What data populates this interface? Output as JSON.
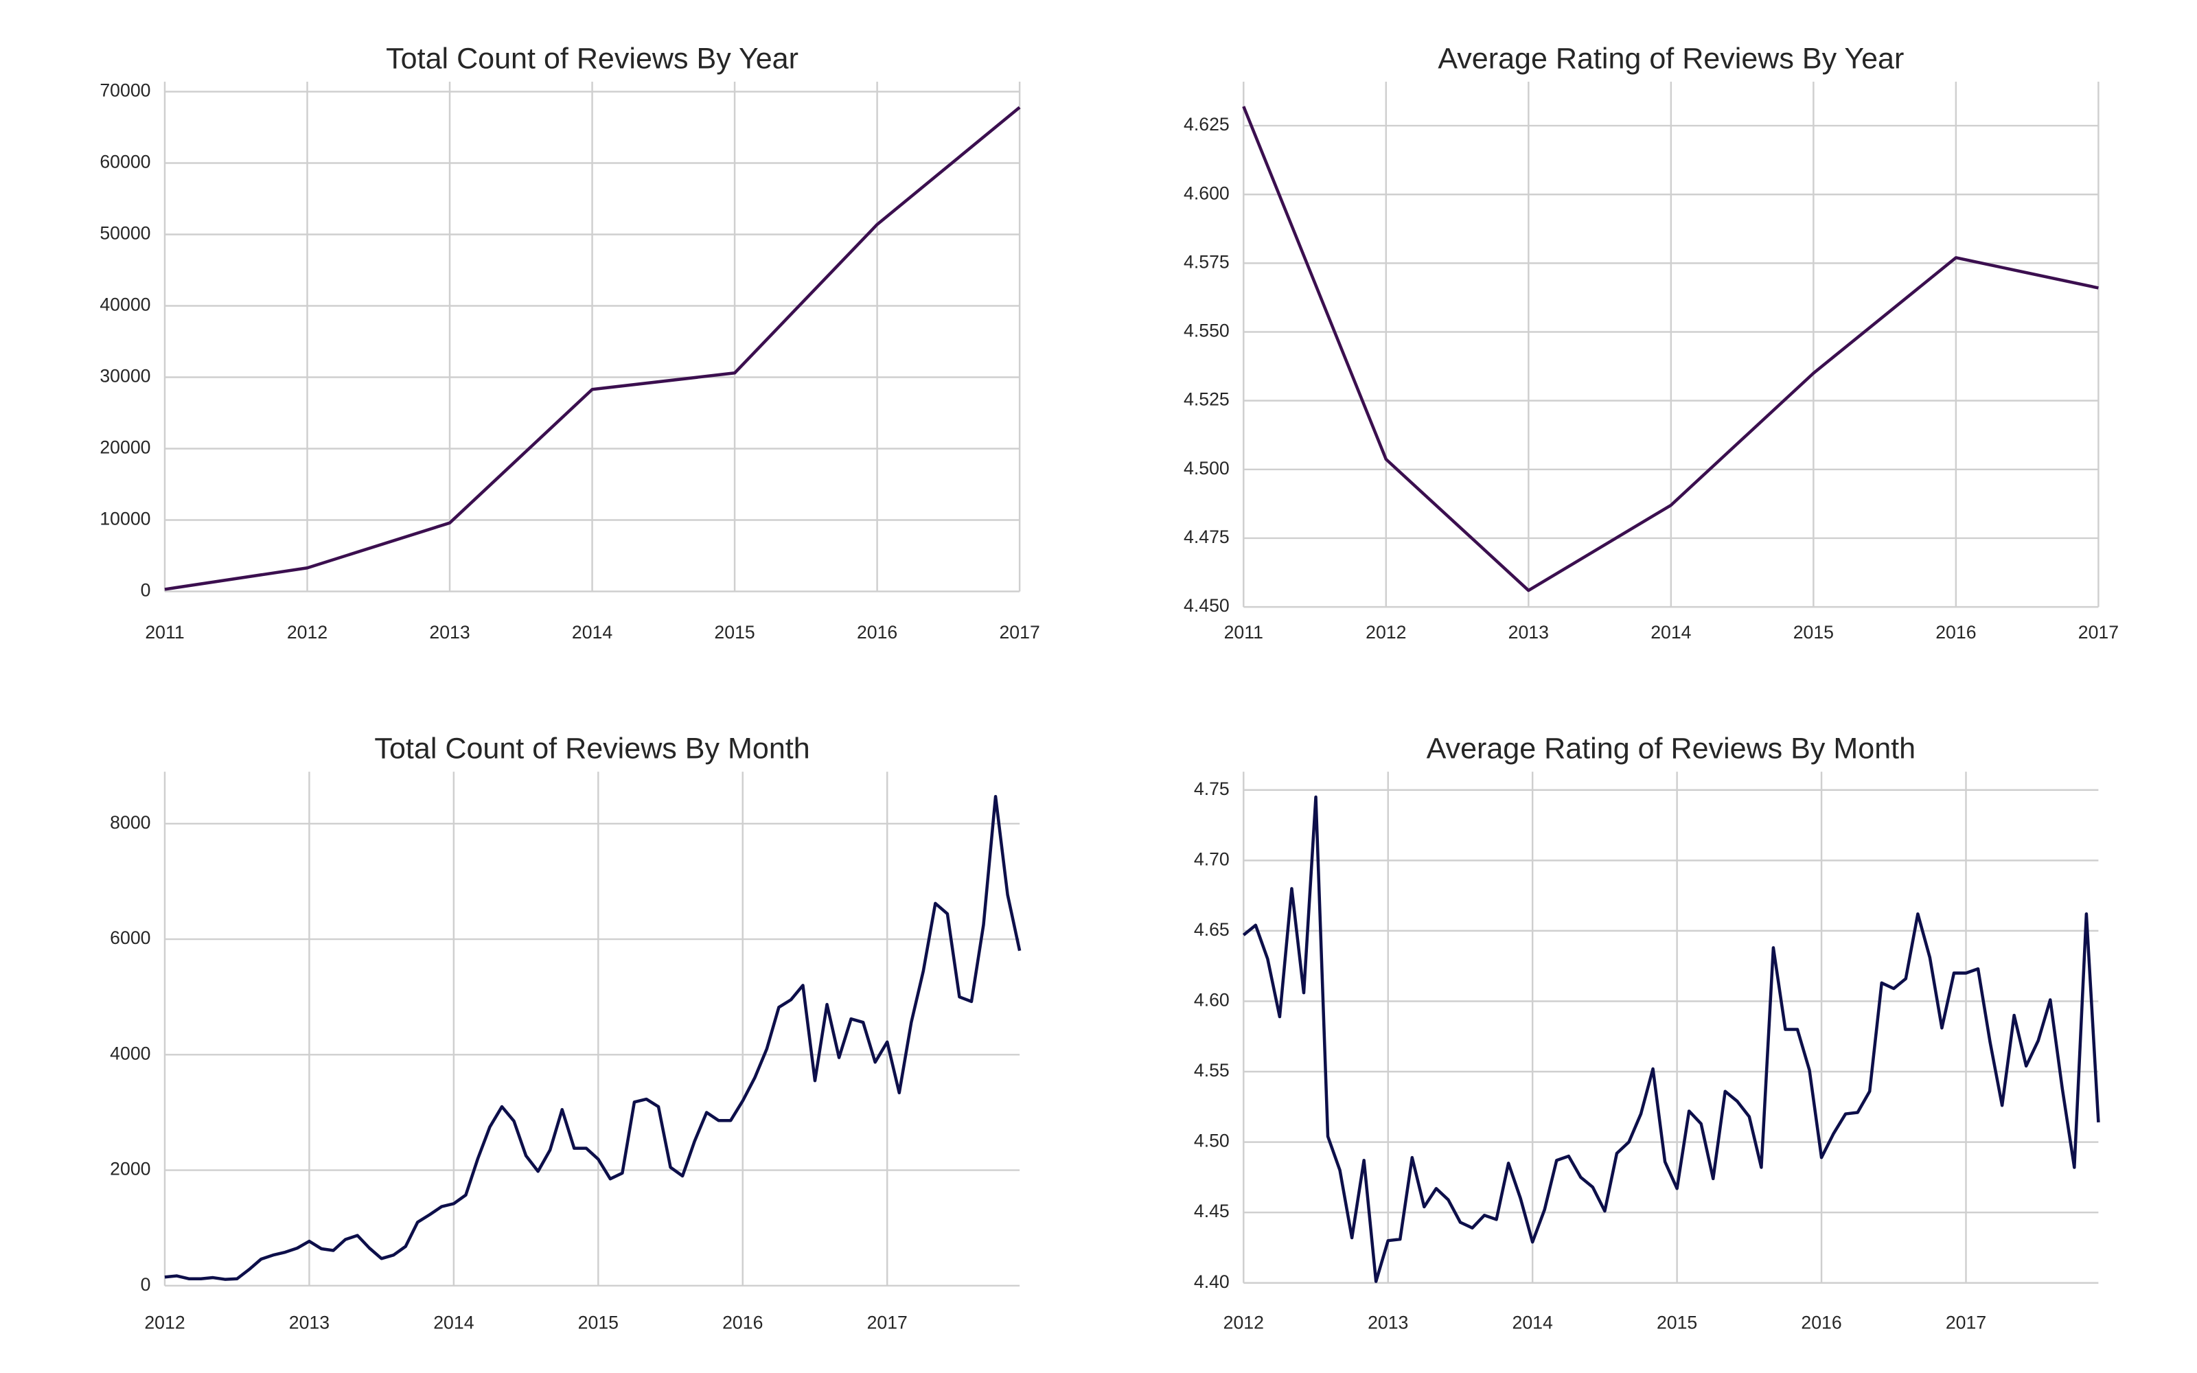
{
  "chart_data": [
    {
      "type": "line",
      "title": "Total Count of Reviews By Year",
      "x": [
        2011,
        2012,
        2013,
        2014,
        2015,
        2016,
        2017
      ],
      "values": [
        300,
        3300,
        9600,
        28300,
        30600,
        51400,
        67800
      ],
      "color": "#3b0f4f",
      "xlim": [
        2011,
        2017
      ],
      "xticks": [
        2011,
        2012,
        2013,
        2014,
        2015,
        2016,
        2017
      ],
      "ylim": [
        0,
        71400
      ],
      "yticks": [
        0,
        10000,
        20000,
        30000,
        40000,
        50000,
        60000,
        70000
      ],
      "grid": true
    },
    {
      "type": "line",
      "title": "Average Rating of Reviews By Year",
      "x": [
        2011,
        2012,
        2013,
        2014,
        2015,
        2016,
        2017
      ],
      "values": [
        4.632,
        4.5037,
        4.456,
        4.487,
        4.535,
        4.577,
        4.566
      ],
      "color": "#3b0f4f",
      "xlim": [
        2011,
        2017
      ],
      "xticks": [
        2011,
        2012,
        2013,
        2014,
        2015,
        2016,
        2017
      ],
      "ylim": [
        4.45,
        4.641
      ],
      "yticks": [
        {
          "value": 4.45,
          "label": "4.450"
        },
        {
          "value": 4.475,
          "label": "4.475"
        },
        {
          "value": 4.5,
          "label": "4.500"
        },
        {
          "value": 4.525,
          "label": "4.525"
        },
        {
          "value": 4.55,
          "label": "4.550"
        },
        {
          "value": 4.575,
          "label": "4.575"
        },
        {
          "value": 4.6,
          "label": "4.600"
        },
        {
          "value": 4.625,
          "label": "4.625"
        }
      ],
      "grid": true
    },
    {
      "type": "line",
      "title": "Total Count of Reviews By Month",
      "x": [
        "2012-01",
        "2012-02",
        "2012-03",
        "2012-04",
        "2012-05",
        "2012-06",
        "2012-07",
        "2012-08",
        "2012-09",
        "2012-10",
        "2012-11",
        "2012-12",
        "2013-01",
        "2013-02",
        "2013-03",
        "2013-04",
        "2013-05",
        "2013-06",
        "2013-07",
        "2013-08",
        "2013-09",
        "2013-10",
        "2013-11",
        "2013-12",
        "2014-01",
        "2014-02",
        "2014-03",
        "2014-04",
        "2014-05",
        "2014-06",
        "2014-07",
        "2014-08",
        "2014-09",
        "2014-10",
        "2014-11",
        "2014-12",
        "2015-01",
        "2015-02",
        "2015-03",
        "2015-04",
        "2015-05",
        "2015-06",
        "2015-07",
        "2015-08",
        "2015-09",
        "2015-10",
        "2015-11",
        "2015-12",
        "2016-01",
        "2016-02",
        "2016-03",
        "2016-04",
        "2016-05",
        "2016-06",
        "2016-07",
        "2016-08",
        "2016-09",
        "2016-10",
        "2016-11",
        "2016-12",
        "2017-01",
        "2017-02",
        "2017-03",
        "2017-04",
        "2017-05",
        "2017-06",
        "2017-07",
        "2017-08",
        "2017-09",
        "2017-10",
        "2017-11",
        "2017-12"
      ],
      "values": [
        150,
        170,
        120,
        120,
        140,
        110,
        120,
        280,
        460,
        530,
        580,
        650,
        770,
        640,
        610,
        800,
        870,
        650,
        470,
        530,
        680,
        1100,
        1230,
        1370,
        1420,
        1570,
        2200,
        2750,
        3100,
        2850,
        2250,
        1980,
        2350,
        3050,
        2380,
        2380,
        2190,
        1850,
        1950,
        3180,
        3230,
        3100,
        2050,
        1900,
        2500,
        3000,
        2860,
        2860,
        3200,
        3600,
        4100,
        4820,
        4950,
        5200,
        3550,
        4870,
        3950,
        4620,
        4560,
        3870,
        4220,
        3340,
        4560,
        5450,
        6620,
        6440,
        5000,
        4920,
        6250,
        8470,
        6770,
        5800
      ],
      "color": "#0d0f4a",
      "xlim": [
        "2012-01",
        "2017-12"
      ],
      "xticks": [
        {
          "value": "2012-01",
          "label": "2012"
        },
        {
          "value": "2013-01",
          "label": "2013"
        },
        {
          "value": "2014-01",
          "label": "2014"
        },
        {
          "value": "2015-01",
          "label": "2015"
        },
        {
          "value": "2016-01",
          "label": "2016"
        },
        {
          "value": "2017-01",
          "label": "2017"
        }
      ],
      "ylim": [
        0,
        8900
      ],
      "yticks": [
        0,
        2000,
        4000,
        6000,
        8000
      ],
      "grid": true
    },
    {
      "type": "line",
      "title": "Average Rating of Reviews By Month",
      "x": [
        "2012-01",
        "2012-02",
        "2012-03",
        "2012-04",
        "2012-05",
        "2012-06",
        "2012-07",
        "2012-08",
        "2012-09",
        "2012-10",
        "2012-11",
        "2012-12",
        "2013-01",
        "2013-02",
        "2013-03",
        "2013-04",
        "2013-05",
        "2013-06",
        "2013-07",
        "2013-08",
        "2013-09",
        "2013-10",
        "2013-11",
        "2013-12",
        "2014-01",
        "2014-02",
        "2014-03",
        "2014-04",
        "2014-05",
        "2014-06",
        "2014-07",
        "2014-08",
        "2014-09",
        "2014-10",
        "2014-11",
        "2014-12",
        "2015-01",
        "2015-02",
        "2015-03",
        "2015-04",
        "2015-05",
        "2015-06",
        "2015-07",
        "2015-08",
        "2015-09",
        "2015-10",
        "2015-11",
        "2015-12",
        "2016-01",
        "2016-02",
        "2016-03",
        "2016-04",
        "2016-05",
        "2016-06",
        "2016-07",
        "2016-08",
        "2016-09",
        "2016-10",
        "2016-11",
        "2016-12",
        "2017-01",
        "2017-02",
        "2017-03",
        "2017-04",
        "2017-05",
        "2017-06",
        "2017-07",
        "2017-08",
        "2017-09",
        "2017-10",
        "2017-11",
        "2017-12"
      ],
      "values": [
        4.647,
        4.654,
        4.63,
        4.589,
        4.68,
        4.606,
        4.745,
        4.504,
        4.48,
        4.432,
        4.487,
        4.401,
        4.43,
        4.431,
        4.489,
        4.454,
        4.467,
        4.459,
        4.443,
        4.439,
        4.448,
        4.445,
        4.485,
        4.46,
        4.429,
        4.452,
        4.487,
        4.49,
        4.475,
        4.468,
        4.451,
        4.492,
        4.5,
        4.52,
        4.552,
        4.486,
        4.467,
        4.522,
        4.513,
        4.474,
        4.536,
        4.529,
        4.518,
        4.482,
        4.638,
        4.58,
        4.58,
        4.551,
        4.489,
        4.506,
        4.52,
        4.521,
        4.536,
        4.613,
        4.609,
        4.616,
        4.662,
        4.631,
        4.581,
        4.62,
        4.62,
        4.623,
        4.571,
        4.526,
        4.59,
        4.554,
        4.572,
        4.601,
        4.538,
        4.482,
        4.662,
        4.514
      ],
      "color": "#0d0f4a",
      "xlim": [
        "2012-01",
        "2017-12"
      ],
      "xticks": [
        {
          "value": "2012-01",
          "label": "2012"
        },
        {
          "value": "2013-01",
          "label": "2013"
        },
        {
          "value": "2014-01",
          "label": "2014"
        },
        {
          "value": "2015-01",
          "label": "2015"
        },
        {
          "value": "2016-01",
          "label": "2016"
        },
        {
          "value": "2017-01",
          "label": "2017"
        }
      ],
      "ylim": [
        4.4,
        4.763
      ],
      "yticks": [
        {
          "value": 4.4,
          "label": "4.40"
        },
        {
          "value": 4.45,
          "label": "4.45"
        },
        {
          "value": 4.5,
          "label": "4.50"
        },
        {
          "value": 4.55,
          "label": "4.55"
        },
        {
          "value": 4.6,
          "label": "4.60"
        },
        {
          "value": 4.65,
          "label": "4.65"
        },
        {
          "value": 4.7,
          "label": "4.70"
        },
        {
          "value": 4.75,
          "label": "4.75"
        }
      ],
      "grid": true
    }
  ]
}
